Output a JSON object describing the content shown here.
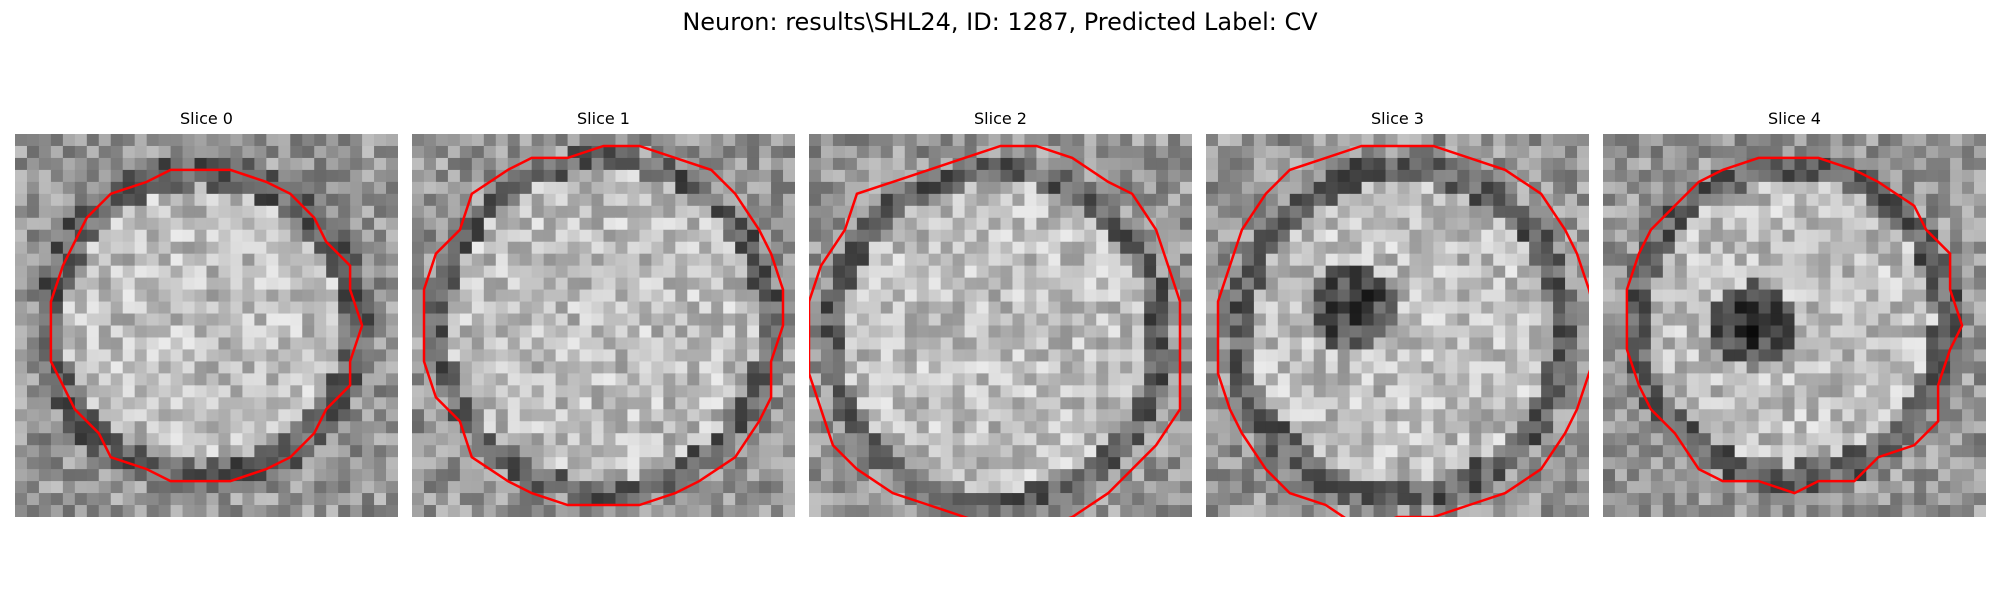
{
  "figure": {
    "title": "Neuron: results\\SHL24, ID: 1287, Predicted Label: CV"
  },
  "panels": [
    {
      "title": "Slice 0",
      "dark_spot": false
    },
    {
      "title": "Slice 1",
      "dark_spot": false
    },
    {
      "title": "Slice 2",
      "dark_spot": false
    },
    {
      "title": "Slice 3",
      "dark_spot": true
    },
    {
      "title": "Slice 4",
      "dark_spot": true
    }
  ],
  "colors": {
    "contour": "#ff0000",
    "background": "#ffffff"
  }
}
